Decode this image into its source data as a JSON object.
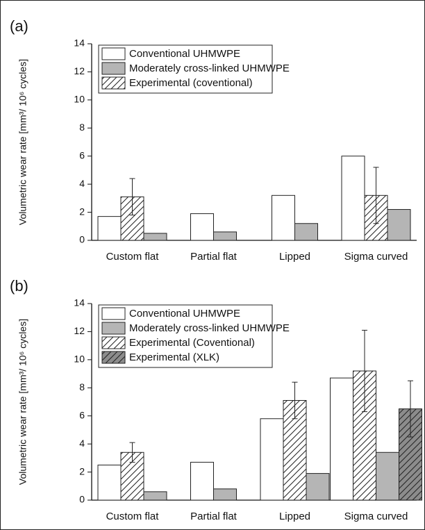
{
  "chart_data": [
    {
      "type": "bar",
      "panel_label": "(a)",
      "y_label": "Volumetric wear rate [mm³/ 10⁶ cycles]",
      "categories": [
        "Custom flat",
        "Partial flat",
        "Lipped",
        "Sigma curved"
      ],
      "series": [
        {
          "name": "Conventional UHMWPE",
          "color": "#ffffff",
          "hatch": false,
          "values": [
            1.7,
            1.9,
            3.2,
            6.0
          ]
        },
        {
          "name": "Experimental (coventional)",
          "color": "#ffffff",
          "hatch": true,
          "values": [
            3.1,
            null,
            null,
            3.2
          ],
          "errors": [
            1.3,
            null,
            null,
            2.0
          ]
        },
        {
          "name": "Moderately cross-linked UHMWPE",
          "color": "#b5b5b5",
          "hatch": false,
          "values": [
            0.5,
            0.6,
            1.2,
            2.2
          ]
        }
      ],
      "legend_order": [
        0,
        2,
        1
      ],
      "legend": "upper left",
      "ylim": [
        0,
        14
      ],
      "yticks": [
        0,
        2,
        4,
        6,
        8,
        10,
        12,
        14
      ]
    },
    {
      "type": "bar",
      "panel_label": "(b)",
      "y_label": "Volumetric wear rate [mm³/ 10⁶ cycles]",
      "categories": [
        "Custom flat",
        "Partial flat",
        "Lipped",
        "Sigma curved"
      ],
      "series": [
        {
          "name": "Conventional UHMWPE",
          "color": "#ffffff",
          "hatch": false,
          "values": [
            2.5,
            2.7,
            5.8,
            8.7
          ]
        },
        {
          "name": "Experimental (Coventional)",
          "color": "#ffffff",
          "hatch": true,
          "values": [
            3.4,
            null,
            7.1,
            9.2
          ],
          "errors": [
            0.7,
            null,
            1.3,
            2.9
          ]
        },
        {
          "name": "Moderately cross-linked UHMWPE",
          "color": "#b5b5b5",
          "hatch": false,
          "values": [
            0.6,
            0.8,
            1.9,
            3.4
          ]
        },
        {
          "name": "Experimental (XLK)",
          "color": "#8c8c8c",
          "hatch": true,
          "values": [
            null,
            null,
            null,
            6.5
          ],
          "errors": [
            null,
            null,
            null,
            2.0
          ]
        }
      ],
      "legend_order": [
        0,
        2,
        1,
        3
      ],
      "legend": "upper left",
      "ylim": [
        0,
        14
      ],
      "yticks": [
        0,
        2,
        4,
        6,
        8,
        10,
        12,
        14
      ]
    }
  ]
}
